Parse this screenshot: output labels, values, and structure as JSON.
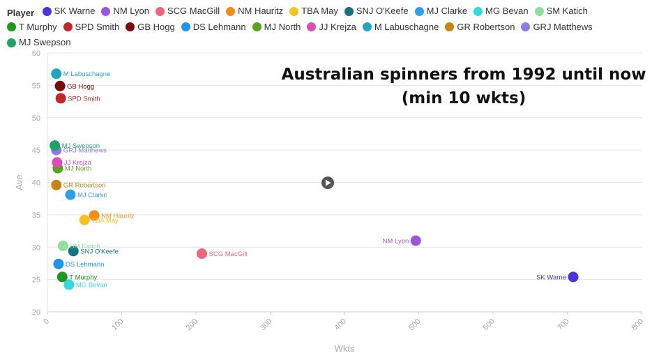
{
  "legend": {
    "title": "Player"
  },
  "chart_data": {
    "type": "scatter",
    "title_lines": [
      "Australian spinners from 1992 until now",
      "(min 10 wkts)"
    ],
    "xlabel": "Wkts",
    "ylabel": "Ave",
    "xlim": [
      0,
      800
    ],
    "ylim": [
      20,
      60
    ],
    "xticks": [
      0,
      100,
      200,
      300,
      400,
      500,
      600,
      700,
      800
    ],
    "yticks": [
      20,
      25,
      30,
      35,
      40,
      45,
      50,
      55,
      60
    ],
    "grid": true,
    "legend_position": "top",
    "series": [
      {
        "name": "SK Warne",
        "color": "#4a34d9",
        "x": 708,
        "y": 25.4
      },
      {
        "name": "NM Lyon",
        "color": "#9a57de",
        "x": 496,
        "y": 31.0
      },
      {
        "name": "SCG MacGill",
        "color": "#f0657d",
        "x": 208,
        "y": 29.0
      },
      {
        "name": "NM Hauritz",
        "color": "#f28c1a",
        "x": 63,
        "y": 34.9
      },
      {
        "name": "TBA May",
        "color": "#f7c21c",
        "x": 50,
        "y": 34.2
      },
      {
        "name": "SNJ O'Keefe",
        "color": "#18717f",
        "x": 35,
        "y": 29.4
      },
      {
        "name": "MJ Clarke",
        "color": "#2ea0e8",
        "x": 31,
        "y": 38.1
      },
      {
        "name": "MG Bevan",
        "color": "#36d8e0",
        "x": 29,
        "y": 24.2
      },
      {
        "name": "SM Katich",
        "color": "#8fe09c",
        "x": 21,
        "y": 30.2
      },
      {
        "name": "T Murphy",
        "color": "#1d9a1d",
        "x": 20,
        "y": 25.4
      },
      {
        "name": "SPD Smith",
        "color": "#c42727",
        "x": 18,
        "y": 53.0
      },
      {
        "name": "GB Hogg",
        "color": "#7a0b0b",
        "x": 17,
        "y": 54.9
      },
      {
        "name": "DS Lehmann",
        "color": "#1d96ef",
        "x": 15,
        "y": 27.4
      },
      {
        "name": "MJ North",
        "color": "#5ea020",
        "x": 14,
        "y": 42.2
      },
      {
        "name": "JJ Krejza",
        "color": "#e04db2",
        "x": 13,
        "y": 43.1
      },
      {
        "name": "M Labuschagne",
        "color": "#1ea6c2",
        "x": 12,
        "y": 56.8
      },
      {
        "name": "GR Robertson",
        "color": "#c78314",
        "x": 12,
        "y": 39.6
      },
      {
        "name": "GRJ Matthews",
        "color": "#8b7ce8",
        "x": 12,
        "y": 45.0
      },
      {
        "name": "MJ Swepson",
        "color": "#1ea36a",
        "x": 10,
        "y": 45.7
      }
    ]
  }
}
